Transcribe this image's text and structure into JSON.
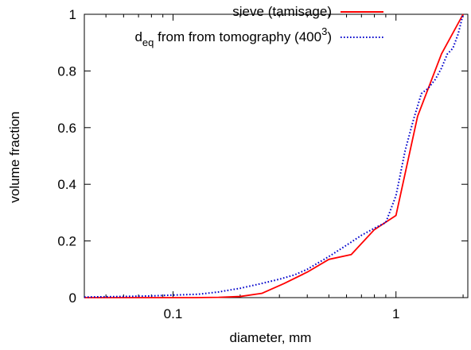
{
  "chart_data": {
    "type": "line",
    "xlabel": "diameter, mm",
    "ylabel": "volume fraction",
    "xscale": "log",
    "xlim": [
      0.04,
      2.1
    ],
    "ylim": [
      0,
      1
    ],
    "xticks": [
      {
        "value": 0.1,
        "label": "0.1"
      },
      {
        "value": 1,
        "label": "1"
      }
    ],
    "yticks": [
      {
        "value": 0,
        "label": "0"
      },
      {
        "value": 0.2,
        "label": "0.2"
      },
      {
        "value": 0.4,
        "label": "0.4"
      },
      {
        "value": 0.6,
        "label": "0.6"
      },
      {
        "value": 0.8,
        "label": "0.8"
      },
      {
        "value": 1,
        "label": "1"
      }
    ],
    "grid": false,
    "legend_position": "top-right",
    "series": [
      {
        "name": "sieve (tamisage)",
        "color": "#ff0000",
        "style": "solid",
        "x": [
          0.04,
          0.063,
          0.08,
          0.1,
          0.125,
          0.16,
          0.2,
          0.25,
          0.315,
          0.4,
          0.5,
          0.63,
          0.8,
          1.0,
          1.25,
          1.6,
          2.0
        ],
        "y": [
          0.0,
          0.0,
          0.0,
          0.0,
          0.0,
          0.001,
          0.004,
          0.015,
          0.05,
          0.09,
          0.135,
          0.152,
          0.24,
          0.29,
          0.64,
          0.86,
          1.0
        ]
      },
      {
        "name_prefix": "d",
        "name_sub": "eq",
        "name_mid": " from from tomography (400",
        "name_sup": "3",
        "name_suffix": ")",
        "color": "#0000cc",
        "style": "dotted",
        "x": [
          0.04,
          0.06,
          0.08,
          0.1,
          0.13,
          0.16,
          0.2,
          0.25,
          0.3,
          0.35,
          0.4,
          0.5,
          0.6,
          0.7,
          0.8,
          0.9,
          1.0,
          1.1,
          1.2,
          1.3,
          1.4,
          1.5,
          1.6,
          1.7,
          1.8,
          1.9,
          2.0
        ],
        "y": [
          0.002,
          0.004,
          0.006,
          0.009,
          0.012,
          0.02,
          0.033,
          0.05,
          0.065,
          0.08,
          0.1,
          0.145,
          0.185,
          0.22,
          0.245,
          0.265,
          0.36,
          0.52,
          0.63,
          0.72,
          0.74,
          0.77,
          0.81,
          0.86,
          0.88,
          0.93,
          1.0
        ]
      }
    ]
  }
}
